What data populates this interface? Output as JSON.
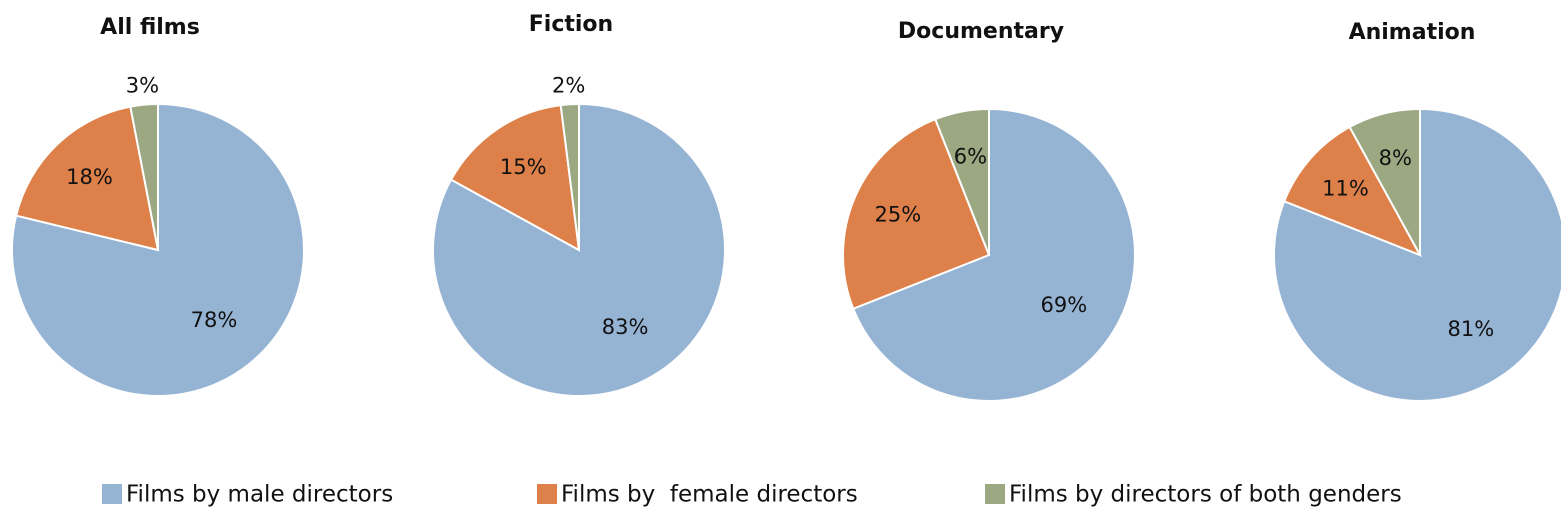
{
  "chart_data": [
    {
      "type": "pie",
      "title": "All films",
      "values": [
        78,
        18,
        3
      ],
      "value_labels": [
        "78%",
        "18%",
        "3%"
      ]
    },
    {
      "type": "pie",
      "title": "Fiction",
      "values": [
        83,
        15,
        2
      ],
      "value_labels": [
        "83%",
        "15%",
        "2%"
      ]
    },
    {
      "type": "pie",
      "title": "Documentary",
      "values": [
        69,
        25,
        6
      ],
      "value_labels": [
        "69%",
        "25%",
        "6%"
      ]
    },
    {
      "type": "pie",
      "title": "Animation",
      "values": [
        81,
        11,
        8
      ],
      "value_labels": [
        "81%",
        "11%",
        "8%"
      ]
    }
  ],
  "legend": [
    {
      "name": "Films by male directors",
      "color": "#95b3d3"
    },
    {
      "name": "Films by  female directors",
      "color": "#de8049"
    },
    {
      "name": "Films by directors of both genders",
      "color": "#9ba882"
    }
  ]
}
